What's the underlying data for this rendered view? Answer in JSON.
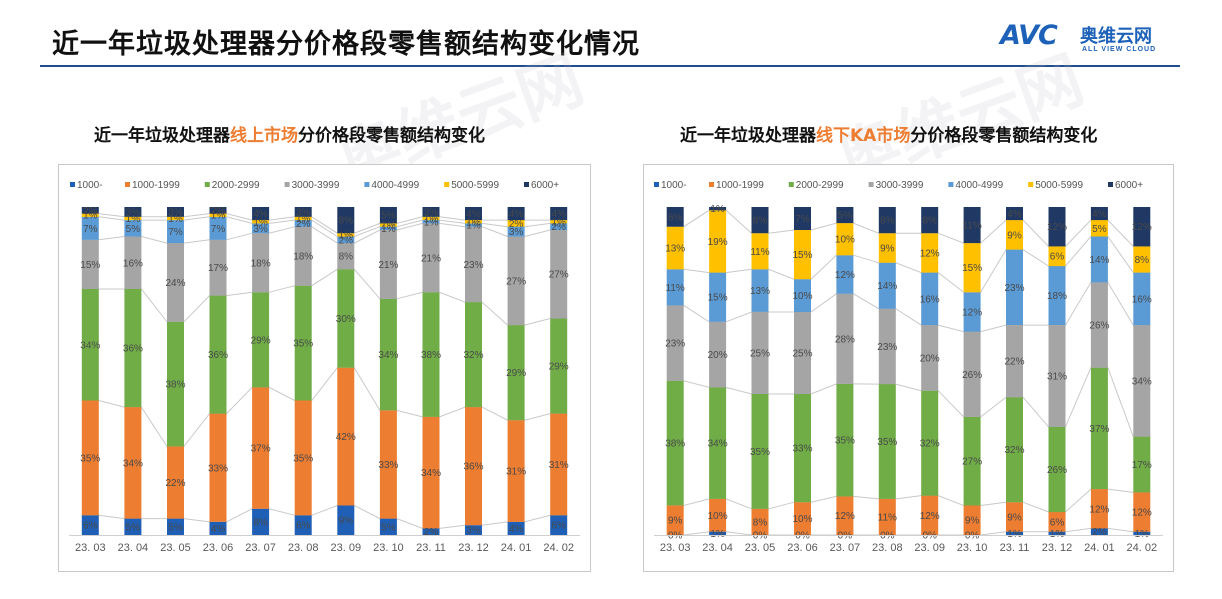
{
  "page": {
    "title": "近一年垃圾处理器分价格段零售额结构变化情况"
  },
  "logo": {
    "brand": "AVC",
    "cn_name": "奥维云网",
    "en_name": "ALL VIEW CLOUD",
    "color": "#1d62b8"
  },
  "watermark": "奥维云网",
  "series_colors": [
    "#1f5fb5",
    "#ed7d31",
    "#70ad47",
    "#a5a5a5",
    "#5b9bd5",
    "#ffc000",
    "#1f3864"
  ],
  "chart_data": [
    {
      "type": "stacked-bar-100",
      "title_parts": [
        "近一年垃圾处理器",
        "线上市场",
        "分价格段零售额结构变化"
      ],
      "categories": [
        "23. 03",
        "23. 04",
        "23. 05",
        "23. 06",
        "23. 07",
        "23. 08",
        "23. 09",
        "23. 10",
        "23. 11",
        "23. 12",
        "24. 01",
        "24. 02"
      ],
      "ylim": [
        0,
        100
      ],
      "legend_position": "top",
      "series": [
        {
          "name": "1000-",
          "values": [
            6,
            5,
            5,
            4,
            8,
            6,
            9,
            5,
            2,
            3,
            4,
            6
          ]
        },
        {
          "name": "1000-1999",
          "values": [
            35,
            34,
            22,
            33,
            37,
            35,
            42,
            33,
            34,
            36,
            31,
            31
          ]
        },
        {
          "name": "2000-2999",
          "values": [
            34,
            36,
            38,
            36,
            29,
            35,
            30,
            34,
            38,
            32,
            29,
            29
          ]
        },
        {
          "name": "3000-3999",
          "values": [
            15,
            16,
            24,
            17,
            18,
            18,
            8,
            21,
            21,
            23,
            27,
            27
          ]
        },
        {
          "name": "4000-4999",
          "values": [
            7,
            5,
            7,
            7,
            3,
            2,
            2,
            1,
            1,
            1,
            3,
            2
          ]
        },
        {
          "name": "5000-5999",
          "values": [
            1,
            1,
            1,
            1,
            1,
            1,
            1,
            1,
            1,
            1,
            2,
            1
          ]
        },
        {
          "name": "6000+",
          "values": [
            2,
            3,
            3,
            2,
            4,
            3,
            8,
            5,
            3,
            4,
            4,
            4
          ]
        }
      ]
    },
    {
      "type": "stacked-bar-100",
      "title_parts": [
        "近一年垃圾处理器",
        "线下KA市场",
        "分价格段零售额结构变化"
      ],
      "categories": [
        "23. 03",
        "23. 04",
        "23. 05",
        "23. 06",
        "23. 07",
        "23. 08",
        "23. 09",
        "23. 10",
        "23. 11",
        "23. 12",
        "24. 01",
        "24. 02"
      ],
      "ylim": [
        0,
        100
      ],
      "legend_position": "top",
      "series": [
        {
          "name": "1000-",
          "values": [
            0,
            1,
            0,
            0,
            0,
            0,
            0,
            0,
            1,
            1,
            2,
            1
          ]
        },
        {
          "name": "1000-1999",
          "values": [
            9,
            10,
            8,
            10,
            12,
            11,
            12,
            9,
            9,
            6,
            12,
            12
          ]
        },
        {
          "name": "2000-2999",
          "values": [
            38,
            34,
            35,
            33,
            35,
            35,
            32,
            27,
            32,
            26,
            37,
            17
          ]
        },
        {
          "name": "3000-3999",
          "values": [
            23,
            20,
            25,
            25,
            28,
            23,
            20,
            26,
            22,
            31,
            26,
            34
          ]
        },
        {
          "name": "4000-4999",
          "values": [
            11,
            15,
            13,
            10,
            12,
            14,
            16,
            12,
            23,
            18,
            14,
            16
          ]
        },
        {
          "name": "5000-5999",
          "values": [
            13,
            19,
            11,
            15,
            10,
            9,
            12,
            15,
            9,
            6,
            5,
            8
          ]
        },
        {
          "name": "6000+",
          "values": [
            6,
            1,
            8,
            7,
            5,
            8,
            8,
            11,
            4,
            12,
            4,
            12
          ]
        }
      ]
    }
  ]
}
